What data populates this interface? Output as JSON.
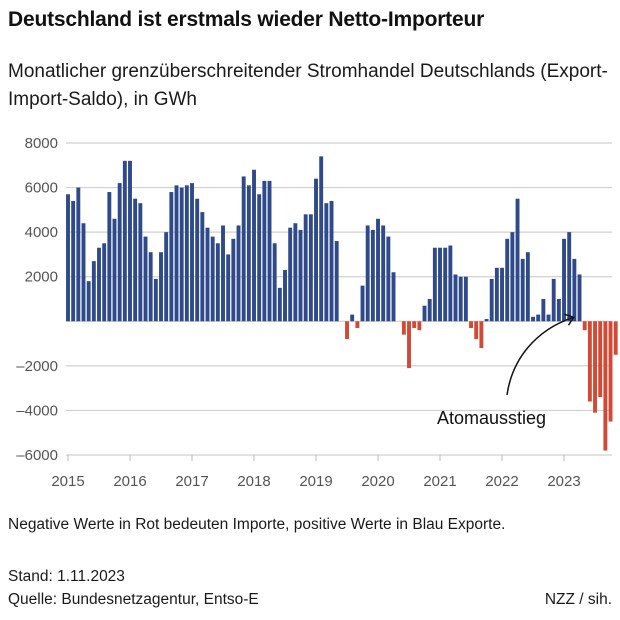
{
  "header": {
    "title": "Deutschland ist erstmals wieder Netto-Importeur",
    "subtitle": "Monatlicher grenzüberschreitender Stromhandel Deutschlands (Export-Import-Saldo), in GWh"
  },
  "footer": {
    "note": "Negative Werte in Rot bedeuten Importe, positive Werte in Blau Exporte.",
    "stand": "Stand: 1.11.2023",
    "source": "Quelle: Bundesnetzagentur, Entso-E",
    "credit": "NZZ / sih."
  },
  "colors": {
    "positive": "#2f4a8a",
    "negative": "#d24a35",
    "grid": "#d0d0d0",
    "axis_text": "#555555"
  },
  "chart_data": {
    "type": "bar",
    "title": "Deutschland ist erstmals wieder Netto-Importeur",
    "subtitle": "Monatlicher grenzüberschreitender Stromhandel Deutschlands (Export-Import-Saldo), in GWh",
    "xlabel": "",
    "ylabel": "GWh",
    "ylim": [
      -6000,
      8000
    ],
    "yticks": [
      8000,
      6000,
      4000,
      2000,
      -2000,
      -4000,
      -6000
    ],
    "ytick_labels": [
      "8000",
      "6000",
      "4000",
      "2000",
      "–2000",
      "–4000",
      "–6000"
    ],
    "xticks": [
      "2015",
      "2016",
      "2017",
      "2018",
      "2019",
      "2020",
      "2021",
      "2022",
      "2023"
    ],
    "grid": true,
    "start": "2015-01",
    "frequency": "monthly",
    "values": [
      5700,
      5400,
      6000,
      4400,
      1800,
      2700,
      3300,
      3500,
      5800,
      4600,
      6200,
      7200,
      7200,
      5500,
      5300,
      3800,
      3100,
      1900,
      3100,
      4000,
      5800,
      6100,
      6000,
      6100,
      6200,
      5500,
      4900,
      4200,
      3800,
      3500,
      4300,
      3000,
      3700,
      4300,
      6500,
      6100,
      6800,
      5700,
      6300,
      6300,
      3500,
      1500,
      2300,
      4200,
      4400,
      4100,
      4800,
      4800,
      6400,
      7400,
      5300,
      5400,
      3600,
      0,
      -800,
      300,
      -300,
      1600,
      4300,
      4100,
      4600,
      4300,
      3800,
      2200,
      0,
      -600,
      -2100,
      -300,
      -400,
      700,
      1000,
      3300,
      3300,
      3300,
      3400,
      2100,
      2000,
      2000,
      -300,
      -800,
      -1200,
      100,
      1900,
      2400,
      2400,
      3700,
      4000,
      5500,
      2800,
      3100,
      200,
      300,
      1000,
      300,
      1900,
      1000,
      3700,
      4000,
      2800,
      2100,
      -400,
      -3600,
      -4100,
      -3400,
      -5800,
      -4500,
      -1500
    ],
    "annotations": [
      {
        "text": "Atomausstieg",
        "target": "2023-04"
      }
    ]
  }
}
